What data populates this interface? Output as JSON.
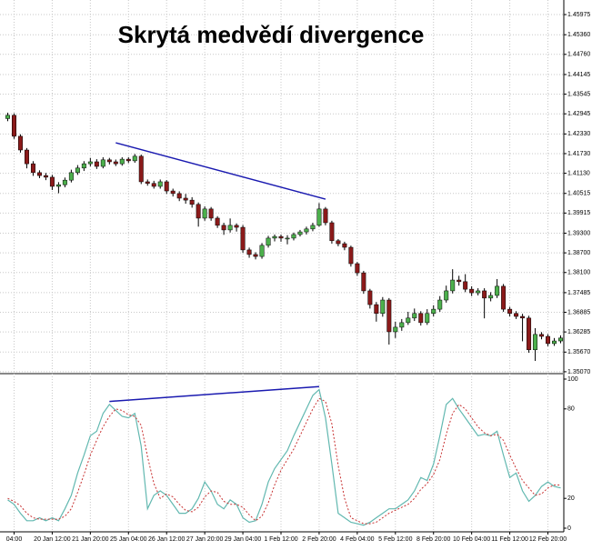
{
  "chart_data": [
    {
      "type": "candlestick",
      "title": "Skrytá medvědí divergence",
      "categories": [
        null,
        "04:00",
        null,
        null,
        null,
        null,
        null,
        "20 Jan 12:00",
        null,
        null,
        null,
        null,
        null,
        "21 Jan 20:00",
        null,
        null,
        null,
        null,
        null,
        "25 Jan 04:00",
        null,
        null,
        null,
        null,
        null,
        "26 Jan 12:00",
        null,
        null,
        null,
        null,
        null,
        "27 Jan 20:00",
        null,
        null,
        null,
        null,
        null,
        "29 Jan 04:00",
        null,
        null,
        null,
        null,
        null,
        "1 Feb 12:00",
        null,
        null,
        null,
        null,
        null,
        "2 Feb 20:00",
        null,
        null,
        null,
        null,
        null,
        "4 Feb 04:00",
        null,
        null,
        null,
        null,
        null,
        "5 Feb 12:00",
        null,
        null,
        null,
        null,
        null,
        "8 Feb 20:00",
        null,
        null,
        null,
        null,
        null,
        "10 Feb 04:00",
        null,
        null,
        null,
        null,
        null,
        "11 Feb 12:00",
        null,
        null,
        null,
        null,
        null,
        "12 Feb 20:00",
        null,
        null
      ],
      "open": [
        1.428,
        1.429,
        1.4226,
        1.4184,
        1.4142,
        1.4115,
        1.4106,
        1.4101,
        1.4073,
        1.4078,
        1.4092,
        1.4115,
        1.4129,
        1.4142,
        1.4148,
        1.4134,
        1.4154,
        1.4148,
        1.4142,
        1.4156,
        1.4151,
        1.4165,
        1.4087,
        1.4082,
        1.4073,
        1.4087,
        1.4059,
        1.4051,
        1.4037,
        1.4031,
        1.4018,
        1.3976,
        1.4004,
        1.3976,
        1.3954,
        1.394,
        1.3954,
        1.3948,
        1.3879,
        1.3865,
        1.3859,
        1.3893,
        1.3915,
        1.392,
        1.3915,
        1.3915,
        1.3926,
        1.3934,
        1.3943,
        1.3954,
        1.4004,
        1.3962,
        1.3907,
        1.3898,
        1.3887,
        1.3837,
        1.3809,
        1.3754,
        1.3712,
        1.3685,
        1.3726,
        1.3629,
        1.3643,
        1.3657,
        1.3671,
        1.3685,
        1.3657,
        1.3685,
        1.3698,
        1.3726,
        1.3754,
        1.3787,
        1.3782,
        1.3759,
        1.3748,
        1.3754,
        1.3732,
        1.374,
        1.3768,
        1.3698,
        1.3685,
        1.3676,
        1.3671,
        1.3574,
        1.3621,
        1.3615,
        1.3593,
        1.3601
      ],
      "high": [
        1.4298,
        1.4296,
        1.4232,
        1.419,
        1.415,
        1.4122,
        1.4114,
        1.4108,
        1.4086,
        1.41,
        1.4124,
        1.4138,
        1.415,
        1.416,
        1.4156,
        1.4162,
        1.416,
        1.4155,
        1.4162,
        1.4162,
        1.4172,
        1.417,
        1.4094,
        1.409,
        1.4094,
        1.4092,
        1.4066,
        1.4058,
        1.405,
        1.404,
        1.4024,
        1.4012,
        1.401,
        1.3982,
        1.3962,
        1.3975,
        1.396,
        1.3955,
        1.3886,
        1.3872,
        1.39,
        1.3922,
        1.3926,
        1.3926,
        1.3924,
        1.3932,
        1.394,
        1.395,
        1.3962,
        1.4022,
        1.401,
        1.3968,
        1.3912,
        1.3904,
        1.3892,
        1.3842,
        1.3815,
        1.376,
        1.372,
        1.3735,
        1.3732,
        1.366,
        1.3668,
        1.369,
        1.37,
        1.3692,
        1.3698,
        1.371,
        1.3738,
        1.377,
        1.382,
        1.38,
        1.3805,
        1.3768,
        1.3762,
        1.3762,
        1.375,
        1.379,
        1.3775,
        1.3705,
        1.3692,
        1.3684,
        1.3678,
        1.364,
        1.3628,
        1.3622,
        1.361,
        1.3618
      ],
      "low": [
        1.4272,
        1.4218,
        1.4176,
        1.4128,
        1.4105,
        1.4098,
        1.4092,
        1.4062,
        1.4052,
        1.407,
        1.4085,
        1.4108,
        1.412,
        1.4134,
        1.4126,
        1.4128,
        1.414,
        1.4135,
        1.4136,
        1.4144,
        1.4145,
        1.408,
        1.4075,
        1.4066,
        1.4066,
        1.405,
        1.4042,
        1.4028,
        1.402,
        1.4008,
        1.395,
        1.3968,
        1.3968,
        1.3946,
        1.3925,
        1.3932,
        1.3935,
        1.387,
        1.3855,
        1.385,
        1.3852,
        1.3886,
        1.3905,
        1.3904,
        1.3896,
        1.3908,
        1.392,
        1.3926,
        1.3936,
        1.395,
        1.3954,
        1.3898,
        1.389,
        1.3878,
        1.3828,
        1.38,
        1.3745,
        1.37,
        1.366,
        1.3675,
        1.359,
        1.361,
        1.3632,
        1.365,
        1.3662,
        1.3648,
        1.365,
        1.3676,
        1.369,
        1.3718,
        1.3746,
        1.377,
        1.375,
        1.3738,
        1.374,
        1.367,
        1.3722,
        1.3732,
        1.369,
        1.3676,
        1.3668,
        1.36,
        1.3565,
        1.354,
        1.3606,
        1.3585,
        1.3586,
        1.3594
      ],
      "close": [
        1.429,
        1.4226,
        1.4184,
        1.4142,
        1.4115,
        1.4106,
        1.4101,
        1.4073,
        1.4078,
        1.4092,
        1.4115,
        1.4129,
        1.4142,
        1.4148,
        1.4134,
        1.4154,
        1.4148,
        1.4142,
        1.4156,
        1.4151,
        1.4165,
        1.4087,
        1.4082,
        1.4073,
        1.4087,
        1.4059,
        1.4051,
        1.4037,
        1.4031,
        1.4018,
        1.3976,
        1.4004,
        1.3976,
        1.3954,
        1.394,
        1.3954,
        1.3948,
        1.3879,
        1.3865,
        1.3859,
        1.3893,
        1.3915,
        1.392,
        1.3915,
        1.3915,
        1.3926,
        1.3934,
        1.3943,
        1.3954,
        1.4004,
        1.3962,
        1.3907,
        1.3898,
        1.3887,
        1.3837,
        1.3809,
        1.3754,
        1.3712,
        1.3685,
        1.3726,
        1.3629,
        1.3643,
        1.3657,
        1.3671,
        1.3685,
        1.3657,
        1.3685,
        1.3698,
        1.3726,
        1.3754,
        1.3787,
        1.3782,
        1.3759,
        1.3748,
        1.3754,
        1.3732,
        1.374,
        1.3768,
        1.3698,
        1.3685,
        1.3676,
        1.3671,
        1.3574,
        1.3621,
        1.3615,
        1.3593,
        1.3601,
        1.361
      ],
      "up_color": "#4cb04c",
      "down_color": "#8b1a1a",
      "ylim": [
        1.3504,
        1.4642
      ],
      "yticks": [
        1.45975,
        {
          "value": 1.4536,
          "label": "1.45360"
        },
        {
          "value": 1.4476,
          "label": "1.44760"
        },
        1.44145,
        1.43545,
        1.42945,
        {
          "value": 1.4233,
          "label": "1.42330"
        },
        {
          "value": 1.4173,
          "label": "1.41730"
        },
        {
          "value": 1.4113,
          "label": "1.41130"
        },
        1.40515,
        1.39915,
        {
          "value": 1.393,
          "label": "1.39300"
        },
        {
          "value": 1.387,
          "label": "1.38700"
        },
        {
          "value": 1.381,
          "label": "1.38100"
        },
        1.37485,
        1.36885,
        1.36285,
        {
          "value": 1.3567,
          "label": "1.35670"
        },
        {
          "value": 1.3507,
          "label": "1.35070"
        }
      ],
      "grid": true,
      "trendline": {
        "x": [
          17,
          50
        ],
        "y": [
          1.4206,
          1.4034
        ],
        "color": "#1a1ab0"
      }
    },
    {
      "type": "line",
      "series": [
        {
          "color": "#62b8b0",
          "dash": false,
          "values": [
            19,
            16,
            10,
            5,
            5,
            7,
            5,
            7,
            5,
            13,
            22,
            37,
            49,
            62,
            65,
            77,
            83,
            79,
            75,
            74,
            77,
            55,
            13,
            22,
            25,
            22,
            16,
            10,
            10,
            13,
            20,
            31,
            25,
            16,
            13,
            19,
            16,
            7,
            4,
            5,
            16,
            31,
            40,
            46,
            52,
            62,
            71,
            80,
            89,
            93,
            74,
            43,
            10,
            7,
            4,
            3,
            2,
            4,
            7,
            10,
            13,
            13,
            16,
            19,
            25,
            34,
            32,
            43,
            62,
            83,
            87,
            80,
            74,
            68,
            62,
            63,
            62,
            65,
            49,
            34,
            37,
            25,
            18,
            22,
            28,
            31,
            28,
            27
          ]
        },
        {
          "color": "#c83232",
          "dash": true,
          "values": [
            20,
            18,
            15,
            10,
            7,
            6,
            6,
            6,
            6,
            8,
            13,
            24,
            36,
            49,
            59,
            68,
            75,
            80,
            79,
            76,
            75,
            69,
            48,
            30,
            20,
            23,
            21,
            16,
            12,
            11,
            14,
            21,
            25,
            24,
            18,
            16,
            16,
            14,
            9,
            5,
            8,
            17,
            29,
            39,
            46,
            53,
            62,
            71,
            80,
            87,
            85,
            70,
            42,
            20,
            7,
            5,
            3,
            3,
            4,
            7,
            10,
            12,
            14,
            16,
            20,
            26,
            30,
            36,
            46,
            63,
            77,
            83,
            80,
            74,
            68,
            64,
            62,
            63,
            59,
            49,
            40,
            32,
            27,
            22,
            23,
            27,
            29,
            29
          ]
        }
      ],
      "ylim": [
        0,
        100
      ],
      "yticks": [
        0,
        20,
        80,
        100
      ],
      "trendline": {
        "x": [
          16,
          49
        ],
        "y": [
          85,
          95
        ],
        "color": "#1a1ab0"
      }
    }
  ]
}
